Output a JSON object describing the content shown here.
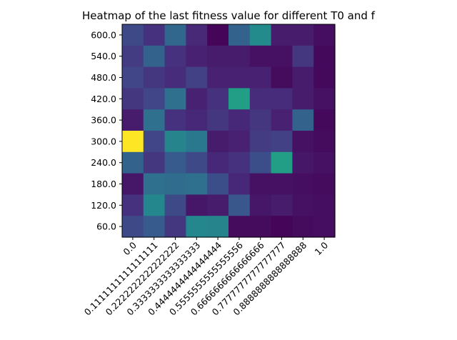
{
  "chart_data": {
    "type": "heatmap",
    "title": "Heatmap of the last fitness value for different T0 and f",
    "xlabel": "",
    "ylabel": "",
    "x_tick_labels": [
      "0.0",
      "0.1111111111111111",
      "0.2222222222222222",
      "0.3333333333333333",
      "0.4444444444444444",
      "0.5555555555555556",
      "0.6666666666666666",
      "0.7777777777777777",
      "0.8888888888888888",
      "1.0"
    ],
    "y_tick_labels": [
      "600.0",
      "540.0",
      "480.0",
      "420.0",
      "360.0",
      "300.0",
      "240.0",
      "180.0",
      "120.0",
      "60.0"
    ],
    "colormap": "viridis",
    "vmin": 0,
    "vmax": 1,
    "grid": false,
    "values": [
      [
        0.28,
        0.18,
        0.42,
        0.15,
        0.02,
        0.4,
        0.6,
        0.1,
        0.1,
        0.05
      ],
      [
        0.22,
        0.4,
        0.18,
        0.12,
        0.1,
        0.1,
        0.06,
        0.06,
        0.2,
        0.03
      ],
      [
        0.26,
        0.2,
        0.16,
        0.24,
        0.12,
        0.12,
        0.12,
        0.04,
        0.1,
        0.03
      ],
      [
        0.2,
        0.26,
        0.46,
        0.12,
        0.18,
        0.7,
        0.16,
        0.16,
        0.1,
        0.06
      ],
      [
        0.1,
        0.46,
        0.18,
        0.14,
        0.2,
        0.14,
        0.2,
        0.12,
        0.4,
        0.03
      ],
      [
        1.0,
        0.26,
        0.56,
        0.5,
        0.1,
        0.12,
        0.22,
        0.24,
        0.06,
        0.04
      ],
      [
        0.4,
        0.2,
        0.36,
        0.28,
        0.14,
        0.18,
        0.3,
        0.7,
        0.08,
        0.06
      ],
      [
        0.08,
        0.46,
        0.44,
        0.46,
        0.3,
        0.14,
        0.06,
        0.06,
        0.05,
        0.04
      ],
      [
        0.18,
        0.58,
        0.28,
        0.08,
        0.1,
        0.34,
        0.08,
        0.1,
        0.06,
        0.05
      ],
      [
        0.28,
        0.36,
        0.2,
        0.58,
        0.56,
        0.04,
        0.04,
        0.02,
        0.04,
        0.05
      ]
    ]
  }
}
